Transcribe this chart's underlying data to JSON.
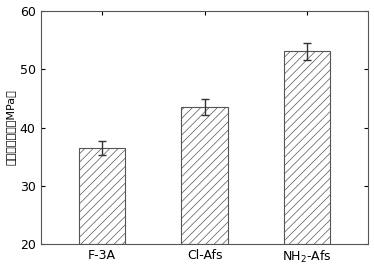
{
  "categories": [
    "F-3A",
    "Cl-Afs",
    "NH$_2$-Afs"
  ],
  "values": [
    36.5,
    43.5,
    53.0
  ],
  "errors": [
    1.2,
    1.3,
    1.5
  ],
  "bar_color": "white",
  "bar_edgecolor": "#555555",
  "hatch": "////",
  "ylabel": "界面剪切强度（MPa）",
  "ylim": [
    20,
    60
  ],
  "yticks": [
    20,
    30,
    40,
    50,
    60
  ],
  "bar_width": 0.45,
  "figsize": [
    3.74,
    2.71
  ],
  "dpi": 100,
  "background_color": "#ffffff",
  "errorbar_color": "#333333",
  "errorbar_capsize": 3,
  "errorbar_linewidth": 1.0,
  "tick_fontsize": 9,
  "ylabel_fontsize": 8,
  "xlabel_fontsize": 9,
  "spine_linewidth": 0.8,
  "hatch_linewidth": 0.5
}
